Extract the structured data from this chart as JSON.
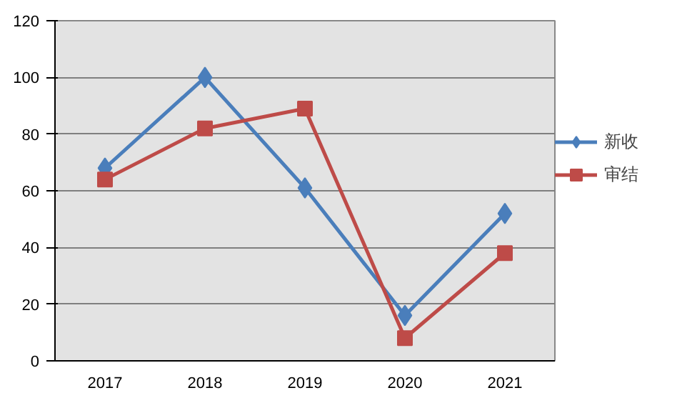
{
  "chart_data": {
    "type": "line",
    "categories": [
      "2017",
      "2018",
      "2019",
      "2020",
      "2021"
    ],
    "series": [
      {
        "name": "新收",
        "color": "#4a7ebb",
        "marker": "diamond",
        "values": [
          68,
          100,
          61,
          16,
          52
        ]
      },
      {
        "name": "审结",
        "color": "#be4b48",
        "marker": "square",
        "values": [
          64,
          82,
          89,
          8,
          38
        ]
      }
    ],
    "ylim": [
      0,
      120
    ],
    "yticks": [
      0,
      20,
      40,
      60,
      80,
      100,
      120
    ],
    "grid": "y",
    "legend": "right",
    "line_style": "solid"
  }
}
